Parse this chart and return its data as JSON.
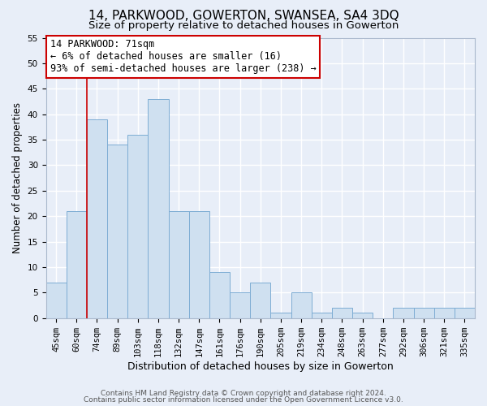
{
  "title": "14, PARKWOOD, GOWERTON, SWANSEA, SA4 3DQ",
  "subtitle": "Size of property relative to detached houses in Gowerton",
  "xlabel": "Distribution of detached houses by size in Gowerton",
  "ylabel": "Number of detached properties",
  "bar_labels": [
    "45sqm",
    "60sqm",
    "74sqm",
    "89sqm",
    "103sqm",
    "118sqm",
    "132sqm",
    "147sqm",
    "161sqm",
    "176sqm",
    "190sqm",
    "205sqm",
    "219sqm",
    "234sqm",
    "248sqm",
    "263sqm",
    "277sqm",
    "292sqm",
    "306sqm",
    "321sqm",
    "335sqm"
  ],
  "bar_values": [
    7,
    21,
    39,
    34,
    36,
    43,
    21,
    21,
    9,
    5,
    7,
    1,
    5,
    1,
    2,
    1,
    0,
    2,
    2,
    2,
    2
  ],
  "bar_color": "#cfe0f0",
  "bar_edge_color": "#7eadd4",
  "vline_x_index": 2,
  "vline_color": "#cc0000",
  "annotation_line1": "14 PARKWOOD: 71sqm",
  "annotation_line2": "← 6% of detached houses are smaller (16)",
  "annotation_line3": "93% of semi-detached houses are larger (238) →",
  "annotation_box_edgecolor": "#cc0000",
  "annotation_box_facecolor": "#ffffff",
  "ylim": [
    0,
    55
  ],
  "yticks": [
    0,
    5,
    10,
    15,
    20,
    25,
    30,
    35,
    40,
    45,
    50,
    55
  ],
  "footer1": "Contains HM Land Registry data © Crown copyright and database right 2024.",
  "footer2": "Contains public sector information licensed under the Open Government Licence v3.0.",
  "bg_color": "#e8eef8",
  "grid_color": "#ffffff",
  "title_fontsize": 11,
  "subtitle_fontsize": 9.5,
  "tick_fontsize": 7.5,
  "ylabel_fontsize": 8.5,
  "xlabel_fontsize": 9,
  "footer_fontsize": 6.5,
  "annotation_fontsize": 8.5
}
